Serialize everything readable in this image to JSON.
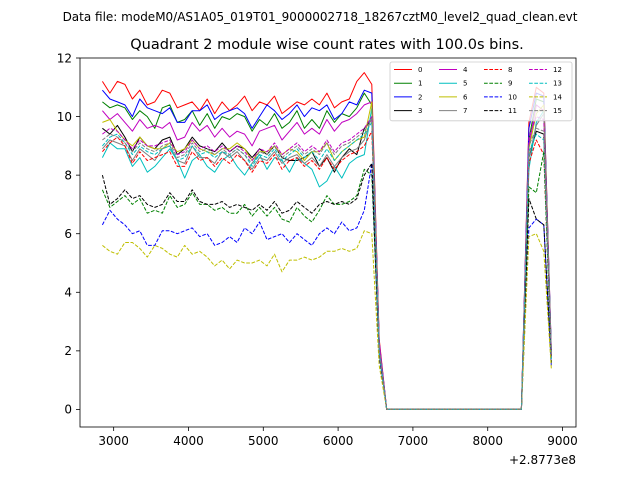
{
  "chart_data": {
    "type": "line",
    "suptitle": "Data file: modeM0/AS1A05_019T01_9000002718_18267cztM0_level2_quad_clean.evt",
    "title": "Quadrant 2 module wise count rates with 100.0s bins.",
    "xlabel": "",
    "ylabel": "",
    "x_offset_label": "+2.8773e8",
    "xlim": [
      2550,
      9180
    ],
    "ylim": [
      -0.6,
      12.0
    ],
    "xticks": [
      3000,
      4000,
      5000,
      6000,
      7000,
      8000,
      9000
    ],
    "xtick_labels": [
      "3000",
      "4000",
      "5000",
      "6000",
      "7000",
      "8000",
      "9000"
    ],
    "yticks": [
      0,
      2,
      4,
      6,
      8,
      10,
      12
    ],
    "ytick_labels": [
      "0",
      "2",
      "4",
      "6",
      "8",
      "10",
      "12"
    ],
    "legend_location": "top-right",
    "legend_columns": 4,
    "x_start": 2850,
    "x_step": 100,
    "series": [
      {
        "name": "0",
        "color": "#ff0000",
        "dashed": false,
        "values": [
          11.2,
          10.8,
          11.2,
          11.1,
          10.6,
          10.9,
          10.4,
          10.5,
          10.9,
          10.8,
          10.3,
          10.4,
          10.5,
          10.2,
          10.6,
          10.1,
          10.5,
          10.2,
          10.4,
          10.7,
          10.2,
          10.5,
          10.4,
          10.7,
          10.1,
          10.3,
          10.5,
          10.4,
          10.6,
          10.4,
          10.8,
          10.3,
          10.5,
          10.6,
          11.2,
          11.5,
          11.1,
          2.4,
          0,
          0,
          0,
          0,
          0,
          0,
          0,
          0,
          0,
          0,
          0,
          0,
          0,
          0,
          0,
          0,
          0,
          0,
          0,
          9.8,
          11.0,
          10.8,
          2.0
        ]
      },
      {
        "name": "1",
        "color": "#008000",
        "dashed": false,
        "values": [
          10.5,
          10.3,
          10.4,
          10.3,
          9.9,
          10.2,
          10.0,
          9.6,
          10.3,
          10.4,
          9.8,
          9.9,
          10.2,
          9.7,
          10.1,
          9.6,
          10.0,
          9.9,
          10.1,
          10.0,
          9.5,
          9.9,
          9.7,
          10.1,
          9.6,
          9.8,
          10.2,
          9.6,
          9.9,
          9.6,
          10.2,
          9.8,
          10.1,
          10.0,
          10.3,
          10.8,
          10.4,
          2.2,
          0,
          0,
          0,
          0,
          0,
          0,
          0,
          0,
          0,
          0,
          0,
          0,
          0,
          0,
          0,
          0,
          0,
          0,
          0,
          9.2,
          10.6,
          10.5,
          1.9
        ]
      },
      {
        "name": "2",
        "color": "#0000ff",
        "dashed": false,
        "values": [
          10.9,
          10.6,
          10.5,
          10.4,
          10.0,
          10.6,
          10.3,
          10.2,
          10.1,
          10.3,
          9.8,
          9.8,
          10.2,
          10.2,
          10.4,
          9.9,
          10.1,
          10.2,
          10.3,
          10.1,
          9.6,
          10.0,
          10.4,
          10.2,
          9.9,
          10.1,
          10.4,
          10.0,
          10.3,
          10.2,
          10.4,
          9.9,
          10.1,
          10.5,
          10.4,
          10.9,
          10.8,
          2.3,
          0,
          0,
          0,
          0,
          0,
          0,
          0,
          0,
          0,
          0,
          0,
          0,
          0,
          0,
          0,
          0,
          0,
          0,
          0,
          9.6,
          10.8,
          10.7,
          2.0
        ]
      },
      {
        "name": "3",
        "color": "#000000",
        "dashed": false,
        "values": [
          9.6,
          9.4,
          9.7,
          9.3,
          8.8,
          9.3,
          9.0,
          8.9,
          9.2,
          9.3,
          8.7,
          8.9,
          9.3,
          9.0,
          8.9,
          8.8,
          9.1,
          8.8,
          9.0,
          8.9,
          8.6,
          8.9,
          8.7,
          9.0,
          8.6,
          8.5,
          8.5,
          8.6,
          8.8,
          8.3,
          8.6,
          8.1,
          8.6,
          8.9,
          8.7,
          9.6,
          9.9,
          2.0,
          0,
          0,
          0,
          0,
          0,
          0,
          0,
          0,
          0,
          0,
          0,
          0,
          0,
          0,
          0,
          0,
          0,
          0,
          0,
          8.6,
          9.5,
          9.4,
          1.8
        ]
      },
      {
        "name": "4",
        "color": "#c000c0",
        "dashed": false,
        "values": [
          10.2,
          9.9,
          10.1,
          9.8,
          9.5,
          9.9,
          9.6,
          9.7,
          9.6,
          9.8,
          9.2,
          9.3,
          9.8,
          9.5,
          9.7,
          9.3,
          9.6,
          9.3,
          9.5,
          9.4,
          9.0,
          9.5,
          9.6,
          9.7,
          9.2,
          9.5,
          9.8,
          9.4,
          9.6,
          9.4,
          9.9,
          9.5,
          9.8,
          9.9,
          10.1,
          10.4,
          10.5,
          2.3,
          0,
          0,
          0,
          0,
          0,
          0,
          0,
          0,
          0,
          0,
          0,
          0,
          0,
          0,
          0,
          0,
          0,
          0,
          0,
          9.0,
          10.4,
          10.2,
          1.9
        ]
      },
      {
        "name": "5",
        "color": "#00bfbf",
        "dashed": false,
        "values": [
          8.6,
          9.1,
          8.9,
          8.9,
          8.3,
          8.6,
          8.1,
          8.3,
          8.6,
          8.9,
          8.5,
          7.9,
          8.5,
          8.7,
          8.3,
          8.1,
          8.5,
          8.7,
          8.3,
          8.0,
          8.4,
          8.7,
          8.2,
          8.6,
          8.5,
          8.1,
          8.6,
          8.4,
          8.2,
          7.6,
          7.8,
          8.3,
          7.9,
          8.4,
          8.6,
          8.7,
          10.3,
          2.1,
          0,
          0,
          0,
          0,
          0,
          0,
          0,
          0,
          0,
          0,
          0,
          0,
          0,
          0,
          0,
          0,
          0,
          0,
          0,
          8.2,
          9.8,
          10.2,
          1.9
        ]
      },
      {
        "name": "6",
        "color": "#bfbf00",
        "dashed": false,
        "values": [
          9.8,
          9.9,
          9.5,
          9.2,
          9.0,
          9.3,
          9.0,
          8.9,
          8.9,
          9.1,
          8.8,
          8.9,
          9.2,
          8.9,
          8.8,
          8.7,
          8.9,
          8.9,
          9.1,
          8.9,
          8.5,
          8.8,
          8.8,
          9.0,
          8.7,
          8.9,
          8.8,
          8.5,
          8.8,
          8.8,
          9.1,
          8.5,
          8.8,
          9.0,
          9.2,
          9.3,
          10.5,
          2.1,
          0,
          0,
          0,
          0,
          0,
          0,
          0,
          0,
          0,
          0,
          0,
          0,
          0,
          0,
          0,
          0,
          0,
          0,
          0,
          8.9,
          10.1,
          10.4,
          1.8
        ]
      },
      {
        "name": "7",
        "color": "#808080",
        "dashed": false,
        "values": [
          8.9,
          9.2,
          9.1,
          9.0,
          8.5,
          8.9,
          8.7,
          8.5,
          8.9,
          9.0,
          8.5,
          8.4,
          9.0,
          8.6,
          8.6,
          8.4,
          8.8,
          8.6,
          8.8,
          8.5,
          8.2,
          8.6,
          8.5,
          8.8,
          8.4,
          8.6,
          8.7,
          8.4,
          8.6,
          8.3,
          8.7,
          8.3,
          8.6,
          8.8,
          8.9,
          9.2,
          10.0,
          2.1,
          0,
          0,
          0,
          0,
          0,
          0,
          0,
          0,
          0,
          0,
          0,
          0,
          0,
          0,
          0,
          0,
          0,
          0,
          0,
          8.6,
          9.7,
          10.1,
          1.8
        ]
      },
      {
        "name": "8",
        "color": "#ff0000",
        "dashed": true,
        "values": [
          8.8,
          9.1,
          9.3,
          9.0,
          8.4,
          8.8,
          8.5,
          8.6,
          8.7,
          8.8,
          8.3,
          8.3,
          8.8,
          8.5,
          8.6,
          8.3,
          8.6,
          8.4,
          8.7,
          8.5,
          8.1,
          8.5,
          8.4,
          8.7,
          8.2,
          8.5,
          8.6,
          8.3,
          8.5,
          8.2,
          8.6,
          8.2,
          8.5,
          8.7,
          8.8,
          9.0,
          9.5,
          2.0,
          0,
          0,
          0,
          0,
          0,
          0,
          0,
          0,
          0,
          0,
          0,
          0,
          0,
          0,
          0,
          0,
          0,
          0,
          0,
          8.4,
          9.2,
          8.7,
          1.7
        ]
      },
      {
        "name": "9",
        "color": "#008000",
        "dashed": true,
        "values": [
          7.5,
          6.9,
          7.1,
          7.3,
          7.0,
          7.2,
          6.7,
          6.8,
          6.7,
          7.3,
          6.9,
          7.0,
          7.4,
          7.0,
          7.0,
          6.8,
          6.9,
          6.7,
          6.7,
          7.0,
          6.6,
          6.9,
          6.6,
          6.9,
          6.5,
          6.4,
          6.9,
          6.6,
          6.4,
          6.8,
          7.3,
          7.0,
          7.0,
          7.1,
          7.3,
          8.2,
          8.0,
          1.9,
          0,
          0,
          0,
          0,
          0,
          0,
          0,
          0,
          0,
          0,
          0,
          0,
          0,
          0,
          0,
          0,
          0,
          0,
          0,
          7.6,
          7.4,
          8.8,
          1.6
        ]
      },
      {
        "name": "10",
        "color": "#0000ff",
        "dashed": true,
        "values": [
          6.3,
          6.8,
          6.5,
          6.3,
          6.0,
          6.1,
          5.6,
          5.6,
          6.1,
          6.1,
          6.0,
          6.1,
          6.2,
          5.9,
          6.0,
          5.6,
          5.7,
          5.9,
          5.7,
          6.2,
          6.0,
          6.4,
          5.8,
          5.9,
          6.0,
          5.7,
          6.0,
          5.8,
          5.6,
          6.0,
          6.2,
          6.0,
          6.4,
          6.1,
          6.2,
          6.8,
          8.4,
          1.8,
          0,
          0,
          0,
          0,
          0,
          0,
          0,
          0,
          0,
          0,
          0,
          0,
          0,
          0,
          0,
          0,
          0,
          0,
          0,
          6.2,
          6.5,
          6.3,
          1.5
        ]
      },
      {
        "name": "11",
        "color": "#000000",
        "dashed": true,
        "values": [
          8.0,
          7.0,
          7.2,
          7.5,
          7.2,
          7.3,
          7.0,
          6.9,
          7.0,
          7.4,
          7.1,
          7.1,
          7.5,
          7.1,
          7.0,
          7.0,
          7.1,
          6.9,
          7.0,
          6.9,
          6.8,
          7.0,
          6.8,
          7.1,
          6.7,
          6.8,
          7.1,
          6.9,
          6.7,
          7.0,
          7.1,
          7.0,
          7.1,
          7.0,
          7.2,
          8.0,
          8.4,
          1.9,
          0,
          0,
          0,
          0,
          0,
          0,
          0,
          0,
          0,
          0,
          0,
          0,
          0,
          0,
          0,
          0,
          0,
          0,
          0,
          7.2,
          6.5,
          6.3,
          1.6
        ]
      },
      {
        "name": "12",
        "color": "#c000c0",
        "dashed": true,
        "values": [
          9.4,
          9.6,
          9.5,
          9.2,
          8.9,
          9.2,
          9.0,
          9.0,
          9.1,
          9.2,
          8.7,
          8.8,
          9.2,
          8.9,
          9.0,
          8.8,
          9.0,
          8.8,
          9.0,
          8.8,
          8.5,
          8.9,
          8.8,
          9.1,
          8.7,
          8.9,
          9.1,
          8.8,
          9.0,
          8.8,
          9.2,
          8.8,
          9.1,
          9.2,
          9.4,
          9.6,
          10.0,
          2.1,
          0,
          0,
          0,
          0,
          0,
          0,
          0,
          0,
          0,
          0,
          0,
          0,
          0,
          0,
          0,
          0,
          0,
          0,
          0,
          9.3,
          10.0,
          9.9,
          1.8
        ]
      },
      {
        "name": "13",
        "color": "#00bfbf",
        "dashed": true,
        "values": [
          9.0,
          9.3,
          9.4,
          9.1,
          8.7,
          9.0,
          8.8,
          8.7,
          8.9,
          9.0,
          8.5,
          8.6,
          9.0,
          8.7,
          8.8,
          8.6,
          8.8,
          8.7,
          8.9,
          8.7,
          8.3,
          8.7,
          8.6,
          8.9,
          8.5,
          8.7,
          8.9,
          8.6,
          8.8,
          8.5,
          8.9,
          8.5,
          8.8,
          9.0,
          9.2,
          9.4,
          9.8,
          2.0,
          0,
          0,
          0,
          0,
          0,
          0,
          0,
          0,
          0,
          0,
          0,
          0,
          0,
          0,
          0,
          0,
          0,
          0,
          0,
          8.8,
          9.4,
          9.2,
          1.7
        ]
      },
      {
        "name": "14",
        "color": "#bfbf00",
        "dashed": true,
        "values": [
          5.6,
          5.4,
          5.3,
          5.7,
          5.7,
          5.5,
          5.2,
          5.6,
          5.5,
          5.3,
          5.2,
          5.6,
          5.3,
          5.4,
          5.2,
          4.9,
          5.1,
          4.8,
          5.1,
          5.0,
          5.0,
          5.1,
          4.9,
          5.3,
          4.7,
          5.1,
          5.1,
          5.2,
          5.1,
          5.2,
          5.4,
          5.4,
          5.5,
          5.4,
          5.5,
          6.1,
          6.0,
          1.5,
          0,
          0,
          0,
          0,
          0,
          0,
          0,
          0,
          0,
          0,
          0,
          0,
          0,
          0,
          0,
          0,
          0,
          0,
          0,
          5.9,
          6.0,
          5.4,
          1.4
        ]
      },
      {
        "name": "15",
        "color": "#808080",
        "dashed": true,
        "values": [
          9.2,
          9.4,
          9.3,
          9.1,
          8.8,
          9.1,
          8.9,
          8.8,
          9.0,
          9.1,
          8.6,
          8.7,
          9.1,
          8.8,
          8.9,
          8.7,
          8.9,
          8.7,
          8.9,
          8.7,
          8.4,
          8.8,
          8.7,
          9.0,
          8.6,
          8.8,
          9.0,
          8.7,
          8.9,
          8.7,
          9.1,
          8.7,
          9.0,
          9.1,
          9.3,
          9.5,
          9.9,
          2.0,
          0,
          0,
          0,
          0,
          0,
          0,
          0,
          0,
          0,
          0,
          0,
          0,
          0,
          0,
          0,
          0,
          0,
          0,
          0,
          9.0,
          9.6,
          9.5,
          1.8
        ]
      }
    ]
  }
}
